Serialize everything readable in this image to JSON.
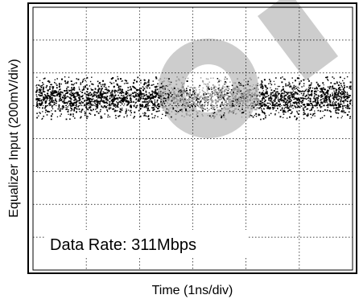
{
  "chart_data": {
    "type": "scatter",
    "title": "",
    "xlabel": "Time (1ns/div)",
    "ylabel": "Equalizer Input (200mV/div)",
    "annotation": "Data Rate: 311Mbps",
    "x_divisions": 6,
    "y_divisions": 8,
    "grid": true,
    "eye_band": {
      "center_div_from_top": 2.75,
      "half_height_div": 0.65,
      "dense_half_height_div": 0.4
    },
    "colors": {
      "trace": "#000000",
      "grid": "#000000",
      "background": "#ffffff",
      "watermark": "#c8c8c8"
    }
  }
}
